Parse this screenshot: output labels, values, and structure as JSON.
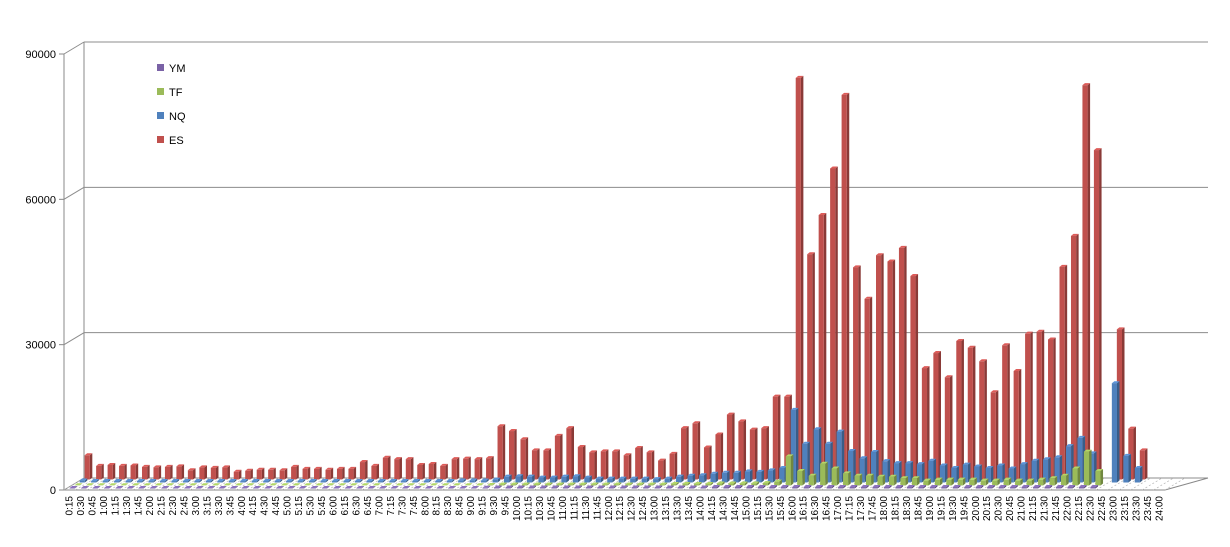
{
  "chart_data": {
    "type": "bar",
    "title": "",
    "xlabel": "",
    "ylabel": "",
    "ylim": [
      0,
      90000
    ],
    "yticks": [
      0,
      30000,
      60000,
      90000
    ],
    "grid": true,
    "legend_position": "top-left",
    "categories": [
      "0:15",
      "0:30",
      "0:45",
      "1:00",
      "1:15",
      "1:30",
      "1:45",
      "2:00",
      "2:15",
      "2:30",
      "2:45",
      "3:00",
      "3:15",
      "3:30",
      "3:45",
      "4:00",
      "4:15",
      "4:30",
      "4:45",
      "5:00",
      "5:15",
      "5:30",
      "5:45",
      "6:00",
      "6:15",
      "6:30",
      "6:45",
      "7:00",
      "7:15",
      "7:30",
      "7:45",
      "8:00",
      "8:15",
      "8:30",
      "8:45",
      "9:00",
      "9:15",
      "9:30",
      "9:45",
      "10:00",
      "10:15",
      "10:30",
      "10:45",
      "11:00",
      "11:15",
      "11:30",
      "11:45",
      "12:00",
      "12:15",
      "12:30",
      "12:45",
      "13:00",
      "13:15",
      "13:30",
      "13:45",
      "14:00",
      "14:15",
      "14:30",
      "14:45",
      "15:00",
      "15:15",
      "15:30",
      "15:45",
      "16:00",
      "16:15",
      "16:30",
      "16:45",
      "17:00",
      "17:15",
      "17:30",
      "17:45",
      "18:00",
      "18:15",
      "18:30",
      "18:45",
      "19:00",
      "19:15",
      "19:30",
      "19:45",
      "20:00",
      "20:15",
      "20:30",
      "20:45",
      "21:00",
      "21:15",
      "21:30",
      "21:45",
      "22:00",
      "22:15",
      "22:30",
      "22:45",
      "23:00",
      "23:15",
      "23:30",
      "23:45",
      "24:00"
    ],
    "series": [
      {
        "name": "YM",
        "color": "#7A62A6",
        "values": [
          100,
          100,
          100,
          100,
          100,
          100,
          100,
          100,
          100,
          100,
          100,
          100,
          100,
          100,
          100,
          100,
          100,
          100,
          100,
          100,
          100,
          100,
          100,
          100,
          100,
          100,
          100,
          100,
          100,
          100,
          100,
          100,
          100,
          100,
          100,
          100,
          150,
          200,
          200,
          200,
          200,
          200,
          200,
          200,
          200,
          200,
          200,
          200,
          200,
          200,
          200,
          200,
          200,
          200,
          200,
          200,
          300,
          300,
          300,
          300,
          300,
          300,
          300,
          300,
          300,
          300,
          300,
          300,
          300,
          300,
          300,
          300,
          300,
          300,
          300,
          300,
          300,
          300,
          300,
          300,
          300,
          300,
          300,
          300,
          300,
          300,
          300,
          300,
          300,
          300,
          0,
          0,
          0,
          0,
          0,
          0
        ]
      },
      {
        "name": "TF",
        "color": "#9BBB59",
        "values": [
          50,
          50,
          50,
          50,
          50,
          50,
          50,
          50,
          50,
          50,
          50,
          50,
          50,
          50,
          50,
          50,
          50,
          50,
          50,
          50,
          50,
          50,
          50,
          50,
          50,
          50,
          50,
          50,
          50,
          50,
          50,
          50,
          50,
          50,
          50,
          50,
          100,
          200,
          200,
          200,
          200,
          200,
          200,
          200,
          200,
          200,
          200,
          200,
          200,
          200,
          200,
          200,
          300,
          300,
          300,
          300,
          400,
          400,
          400,
          400,
          500,
          800,
          6000,
          3000,
          2000,
          4500,
          3500,
          2500,
          2000,
          2000,
          1800,
          1800,
          1500,
          1500,
          1000,
          1200,
          1200,
          1200,
          1200,
          1000,
          1000,
          1200,
          1000,
          1000,
          1200,
          1500,
          2000,
          3500,
          7000,
          3000,
          0,
          0,
          0,
          0,
          0,
          0
        ]
      },
      {
        "name": "NQ",
        "color": "#4F81BD",
        "values": [
          400,
          300,
          300,
          300,
          300,
          300,
          300,
          300,
          300,
          300,
          300,
          300,
          300,
          300,
          300,
          300,
          300,
          300,
          300,
          300,
          300,
          300,
          300,
          300,
          300,
          300,
          300,
          300,
          300,
          300,
          300,
          300,
          300,
          400,
          400,
          400,
          600,
          1200,
          1300,
          1200,
          1000,
          1000,
          1200,
          1300,
          1000,
          800,
          800,
          800,
          800,
          800,
          700,
          800,
          1200,
          1400,
          1500,
          1800,
          2000,
          2000,
          2300,
          2200,
          2500,
          3000,
          15000,
          8000,
          11000,
          8000,
          10500,
          6500,
          5000,
          6300,
          4400,
          4000,
          4000,
          3800,
          4500,
          3500,
          3000,
          3700,
          3300,
          3000,
          3500,
          2900,
          3800,
          4500,
          4800,
          5200,
          7500,
          9200,
          6000,
          0,
          20500,
          5500,
          3000,
          0,
          0,
          0
        ]
      },
      {
        "name": "ES",
        "color": "#C0504D",
        "values": [
          5000,
          2800,
          3000,
          2800,
          2900,
          2600,
          2500,
          2600,
          2700,
          1900,
          2500,
          2400,
          2500,
          1600,
          1800,
          2000,
          2000,
          1900,
          2600,
          2200,
          2200,
          2000,
          2200,
          2200,
          3600,
          2800,
          4500,
          4200,
          4200,
          3000,
          3200,
          2800,
          4200,
          4300,
          4200,
          4400,
          11000,
          10000,
          8300,
          6000,
          6000,
          9000,
          10600,
          6700,
          5600,
          5800,
          5800,
          5000,
          6500,
          5600,
          3900,
          5300,
          10600,
          11600,
          6600,
          9300,
          13400,
          12000,
          10300,
          10600,
          17100,
          17100,
          82900,
          46500,
          54600,
          64200,
          79400,
          43800,
          37300,
          46300,
          45000,
          47800,
          42000,
          23000,
          26100,
          21100,
          28600,
          27200,
          24400,
          18000,
          27700,
          22400,
          30100,
          30500,
          28900,
          43900,
          50300,
          81400,
          68000,
          0,
          31000,
          10500,
          6000,
          0,
          0,
          0
        ]
      }
    ]
  }
}
